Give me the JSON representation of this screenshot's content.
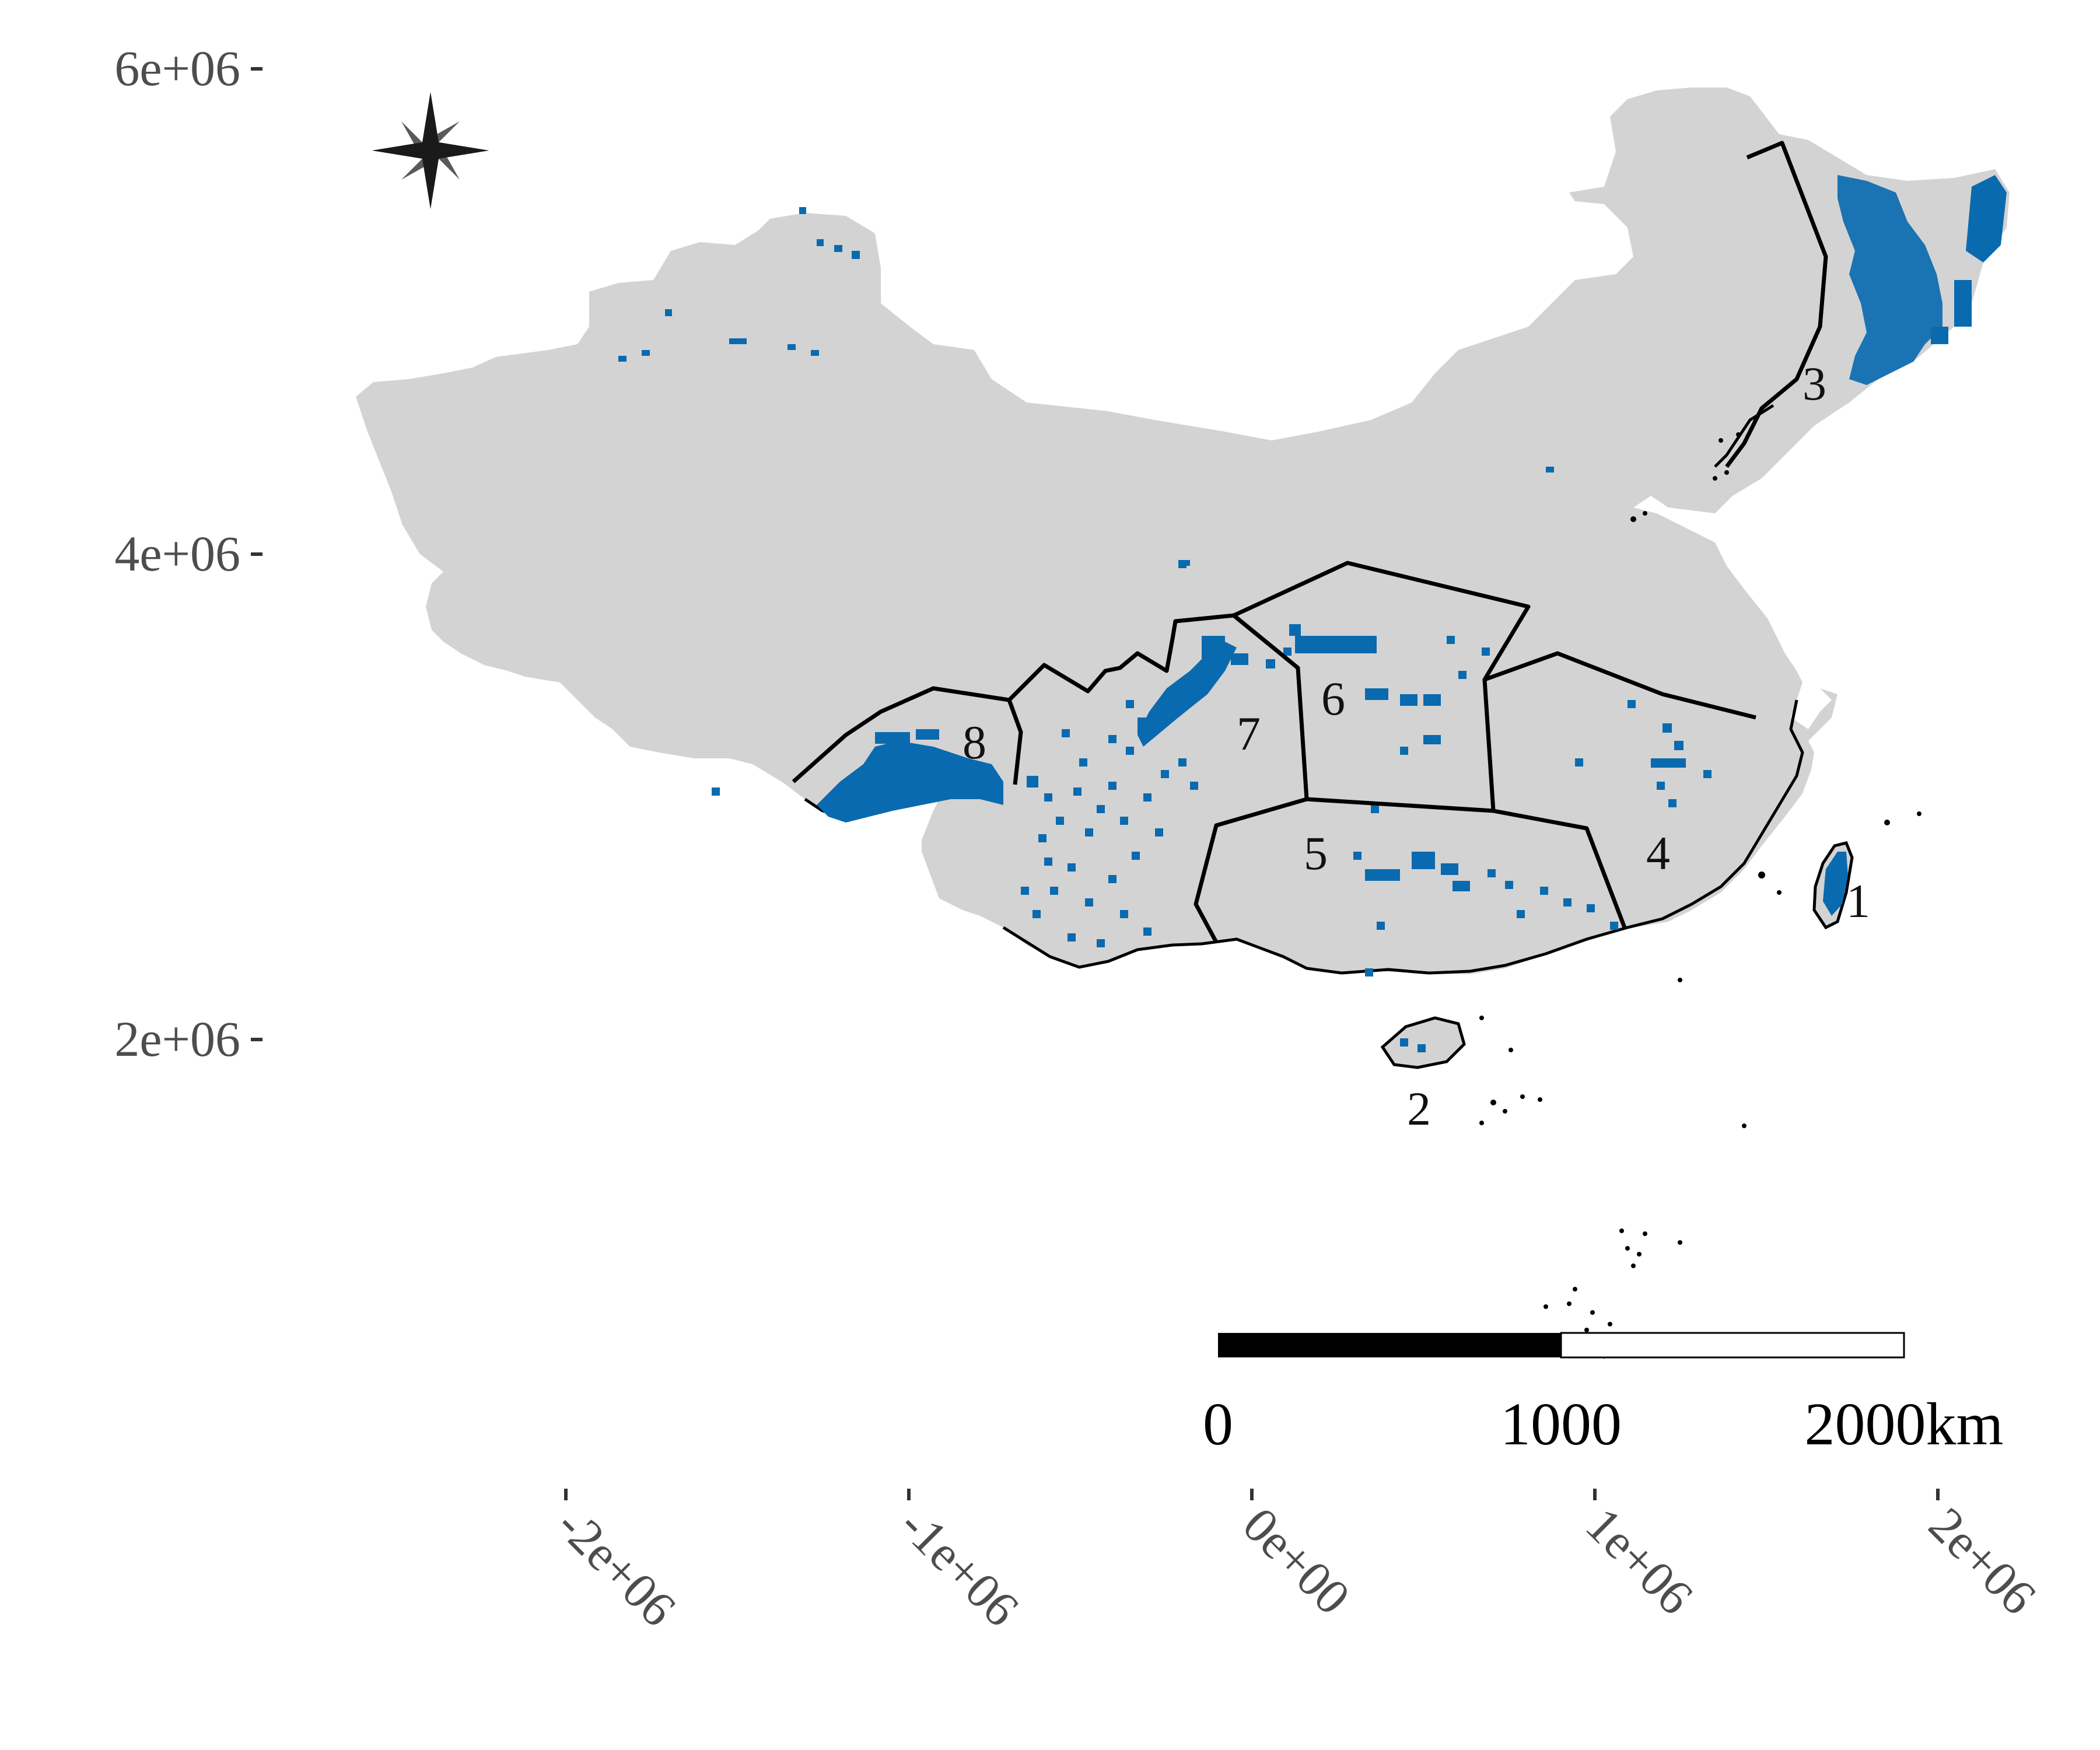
{
  "map": {
    "colors": {
      "land": "#d3d3d3",
      "presence": "#0a6aaf",
      "border": "#000000",
      "axis_text": "#4d4d4d"
    },
    "north_arrow": {
      "icon": "compass-star-icon"
    },
    "y_axis": {
      "ticks": [
        "6e+06",
        "4e+06",
        "2e+06"
      ]
    },
    "x_axis": {
      "ticks": [
        "-2e+06",
        "-1e+06",
        "0e+00",
        "1e+06",
        "2e+06"
      ]
    },
    "regions": [
      "1",
      "2",
      "3",
      "4",
      "5",
      "6",
      "7",
      "8"
    ],
    "scale_bar": {
      "labels": [
        "0",
        "1000",
        "2000km"
      ]
    }
  }
}
